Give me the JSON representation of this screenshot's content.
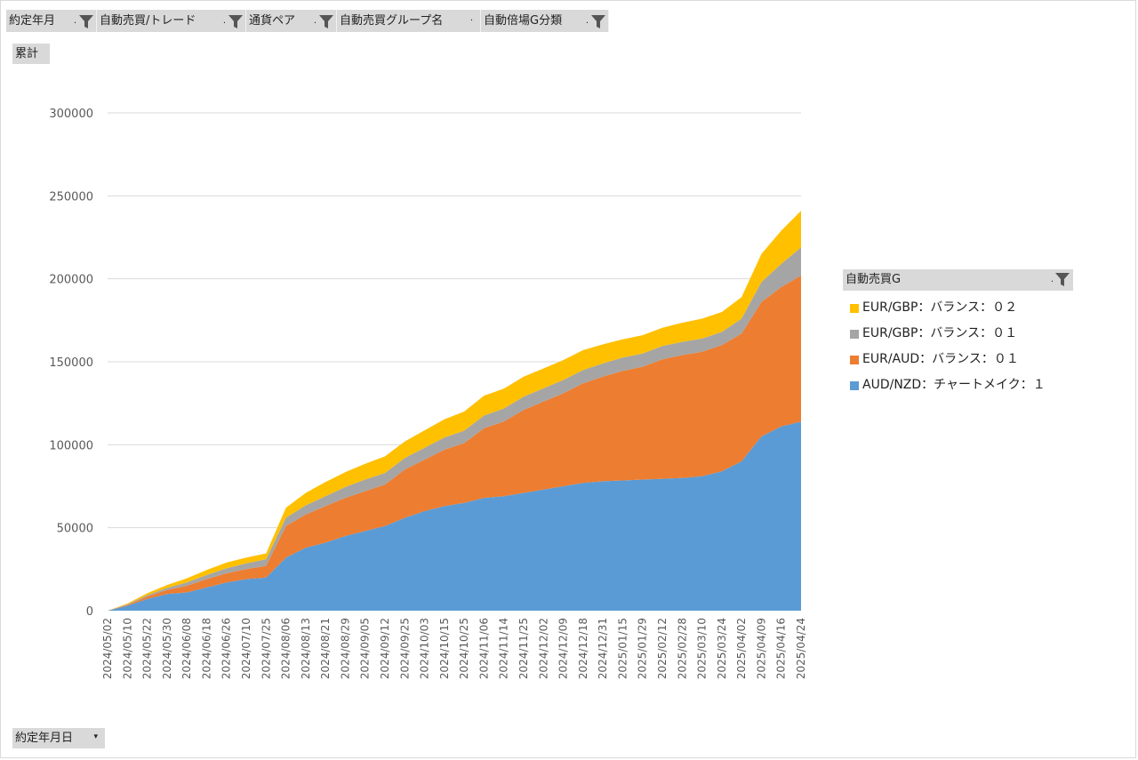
{
  "filters": [
    {
      "label": "約定年月",
      "dot": ".",
      "icon": "filter-icon"
    },
    {
      "label": "自動売買/トレード",
      "dot": ".",
      "icon": "filter-icon"
    },
    {
      "label": "通貨ペア",
      "dot": ".",
      "icon": "filter-icon"
    },
    {
      "label": "自動売買グループ名",
      "dot": "·",
      "icon": "dropdown-icon"
    },
    {
      "label": "自動倍場G分類",
      "dot": ".",
      "icon": "filter-icon"
    }
  ],
  "value_field": "累計",
  "axis_field": "約定年月日",
  "legend": {
    "title": "自動売買G",
    "dot": ".",
    "icon": "filter-icon",
    "items": [
      {
        "label": "EUR/GBP：バランス：０２",
        "color": "#ffc000"
      },
      {
        "label": "EUR/GBP：バランス：０１",
        "color": "#a5a5a5"
      },
      {
        "label": "EUR/AUD：バランス：０１",
        "color": "#ed7d31"
      },
      {
        "label": "AUD/NZD：チャートメイク：１",
        "color": "#5b9bd5"
      }
    ]
  },
  "chart_data": {
    "type": "area",
    "stacked": true,
    "grid": true,
    "legend_position": "right",
    "ylim": [
      0,
      300000
    ],
    "yticks": [
      "0",
      "50000",
      "100000",
      "150000",
      "200000",
      "250000",
      "300000"
    ],
    "xlabel": "",
    "ylabel": "",
    "x": [
      "2024/05/02",
      "2024/05/10",
      "2024/05/22",
      "2024/05/30",
      "2024/06/08",
      "2024/06/18",
      "2024/06/26",
      "2024/07/10",
      "2024/07/25",
      "2024/08/06",
      "2024/08/13",
      "2024/08/21",
      "2024/08/29",
      "2024/09/05",
      "2024/09/12",
      "2024/09/25",
      "2024/10/03",
      "2024/10/15",
      "2024/10/25",
      "2024/11/06",
      "2024/11/14",
      "2024/11/25",
      "2024/12/02",
      "2024/12/09",
      "2024/12/18",
      "2024/12/31",
      "2025/01/15",
      "2025/01/29",
      "2025/02/12",
      "2025/02/28",
      "2025/03/10",
      "2025/03/24",
      "2025/04/02",
      "2025/04/09",
      "2025/04/16",
      "2025/04/24"
    ],
    "series": [
      {
        "name": "AUD/NZD：チャートメイク：１",
        "color": "#5b9bd5",
        "values": [
          0,
          3000,
          7000,
          10000,
          11000,
          14000,
          17000,
          19000,
          20000,
          32000,
          38000,
          41000,
          45000,
          48000,
          51000,
          56000,
          60000,
          63000,
          65000,
          68000,
          69000,
          71000,
          73000,
          75000,
          77000,
          78000,
          78500,
          79000,
          79500,
          80000,
          81000,
          84000,
          90000,
          105000,
          111000,
          114000
        ]
      },
      {
        "name": "EUR/AUD：バランス：０１",
        "color": "#ed7d31",
        "values": [
          0,
          500,
          1500,
          2500,
          4000,
          5000,
          5500,
          6000,
          7000,
          19000,
          20000,
          22000,
          23000,
          24000,
          25000,
          29000,
          31000,
          34000,
          36000,
          42000,
          45000,
          50000,
          53000,
          56000,
          60000,
          63000,
          66000,
          68000,
          72000,
          74000,
          75000,
          76000,
          77000,
          81000,
          84000,
          88000
        ]
      },
      {
        "name": "EUR/GBP：バランス：０１",
        "color": "#a5a5a5",
        "values": [
          0,
          300,
          800,
          1200,
          2000,
          2500,
          3000,
          3500,
          4000,
          5000,
          5500,
          6000,
          6500,
          7000,
          7000,
          7000,
          7200,
          7400,
          7500,
          7600,
          7800,
          8000,
          8000,
          8000,
          8000,
          8000,
          8000,
          8000,
          8000,
          8000,
          8000,
          8000,
          9000,
          12000,
          14000,
          17000
        ]
      },
      {
        "name": "EUR/GBP：バランス：０２",
        "color": "#ffc000",
        "values": [
          0,
          500,
          1200,
          1800,
          2500,
          3000,
          3500,
          3500,
          3500,
          6000,
          7500,
          8500,
          9000,
          9500,
          10000,
          10000,
          10500,
          11000,
          11500,
          12000,
          12000,
          12000,
          12000,
          12000,
          12000,
          11500,
          11000,
          11000,
          11000,
          11500,
          12000,
          12000,
          13000,
          17000,
          20000,
          22000
        ]
      }
    ]
  }
}
